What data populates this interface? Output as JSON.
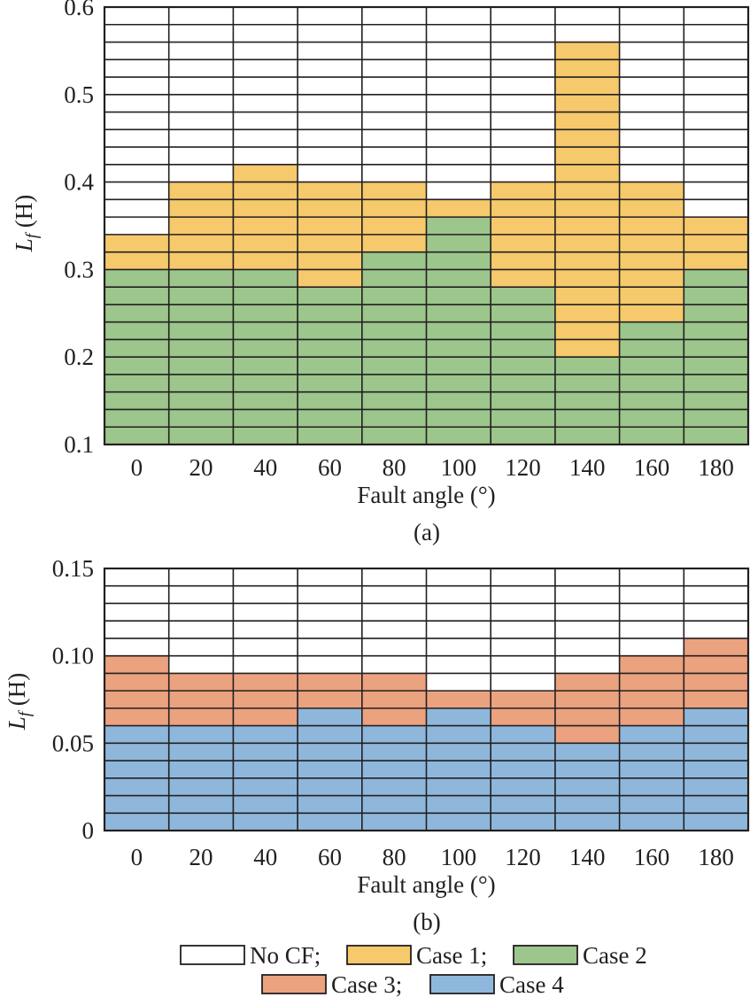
{
  "colors": {
    "no_cf": "#ffffff",
    "case1": "#f6c96c",
    "case2": "#9cc68b",
    "case3": "#eba27e",
    "case4": "#8fb7dc",
    "grid": "#231f20"
  },
  "chart_data": [
    {
      "type": "bar",
      "panel_label": "(a)",
      "xlabel": "Fault angle (°)",
      "ylabel": "L_f (H)",
      "ylabel_main": "L",
      "ylabel_sub": "f",
      "ylabel_unit": " (H)",
      "ylim": [
        0.1,
        0.6
      ],
      "ystep": 0.02,
      "yticks": [
        "0.1",
        "0.2",
        "0.3",
        "0.4",
        "0.5",
        "0.6"
      ],
      "categories": [
        "0",
        "20",
        "40",
        "60",
        "80",
        "100",
        "120",
        "140",
        "160",
        "180"
      ],
      "series": [
        {
          "name": "Case 2",
          "key": "case2",
          "base": [
            0.1,
            0.1,
            0.1,
            0.1,
            0.1,
            0.1,
            0.1,
            0.1,
            0.1,
            0.1
          ],
          "top": [
            0.3,
            0.3,
            0.3,
            0.28,
            0.32,
            0.36,
            0.28,
            0.2,
            0.24,
            0.3
          ]
        },
        {
          "name": "Case 1",
          "key": "case1",
          "base": [
            0.3,
            0.3,
            0.3,
            0.28,
            0.32,
            0.36,
            0.28,
            0.2,
            0.24,
            0.3
          ],
          "top": [
            0.34,
            0.4,
            0.42,
            0.4,
            0.4,
            0.38,
            0.4,
            0.56,
            0.4,
            0.36
          ]
        }
      ]
    },
    {
      "type": "bar",
      "panel_label": "(b)",
      "xlabel": "Fault angle (°)",
      "ylabel": "L_f (H)",
      "ylabel_main": "L",
      "ylabel_sub": "f",
      "ylabel_unit": " (H)",
      "ylim": [
        0,
        0.15
      ],
      "ystep": 0.01,
      "yticks": [
        "0",
        "0.05",
        "0.10",
        "0.15"
      ],
      "categories": [
        "0",
        "20",
        "40",
        "60",
        "80",
        "100",
        "120",
        "140",
        "160",
        "180"
      ],
      "series": [
        {
          "name": "Case 4",
          "key": "case4",
          "base": [
            0,
            0,
            0,
            0,
            0,
            0,
            0,
            0,
            0,
            0
          ],
          "top": [
            0.06,
            0.06,
            0.06,
            0.07,
            0.06,
            0.07,
            0.06,
            0.05,
            0.06,
            0.07
          ]
        },
        {
          "name": "Case 3",
          "key": "case3",
          "base": [
            0.06,
            0.06,
            0.06,
            0.07,
            0.06,
            0.07,
            0.06,
            0.05,
            0.06,
            0.07
          ],
          "top": [
            0.1,
            0.09,
            0.09,
            0.09,
            0.09,
            0.08,
            0.08,
            0.09,
            0.1,
            0.11
          ]
        }
      ]
    }
  ],
  "legend": {
    "row1": [
      {
        "key": "no_cf",
        "label": "No CF;"
      },
      {
        "key": "case1",
        "label": "Case 1;"
      },
      {
        "key": "case2",
        "label": "Case 2"
      }
    ],
    "row2": [
      {
        "key": "case3",
        "label": "Case 3;"
      },
      {
        "key": "case4",
        "label": "Case 4"
      }
    ]
  }
}
